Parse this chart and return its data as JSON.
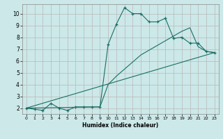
{
  "xlabel": "Humidex (Indice chaleur)",
  "bg_color": "#cce8e8",
  "grid_color": "#b8b8b8",
  "line_color": "#1a6e64",
  "xlim": [
    -0.5,
    23.5
  ],
  "ylim": [
    1.5,
    10.8
  ],
  "xticks": [
    0,
    1,
    2,
    3,
    4,
    5,
    6,
    7,
    8,
    9,
    10,
    11,
    12,
    13,
    14,
    15,
    16,
    17,
    18,
    19,
    20,
    21,
    22,
    23
  ],
  "yticks": [
    2,
    3,
    4,
    5,
    6,
    7,
    8,
    9,
    10
  ],
  "curve1_x": [
    0,
    1,
    2,
    3,
    4,
    5,
    6,
    7,
    8,
    9,
    10,
    11,
    12,
    13,
    14,
    15,
    16,
    17,
    18,
    19,
    20,
    21,
    22,
    23
  ],
  "curve1_y": [
    2.0,
    1.9,
    1.8,
    2.4,
    2.0,
    1.8,
    2.1,
    2.1,
    2.1,
    2.1,
    7.4,
    9.1,
    10.5,
    10.0,
    10.0,
    9.3,
    9.3,
    9.6,
    7.9,
    8.0,
    7.5,
    7.5,
    6.8,
    6.7
  ],
  "curve2_x": [
    0,
    9,
    10,
    11,
    12,
    13,
    14,
    15,
    16,
    17,
    18,
    19,
    20,
    21,
    22,
    23
  ],
  "curve2_y": [
    2.0,
    2.1,
    4.0,
    4.7,
    5.3,
    5.9,
    6.5,
    6.9,
    7.3,
    7.7,
    8.1,
    8.5,
    8.8,
    7.2,
    6.8,
    6.7
  ],
  "curve3_x": [
    0,
    23
  ],
  "curve3_y": [
    2.0,
    6.7
  ]
}
